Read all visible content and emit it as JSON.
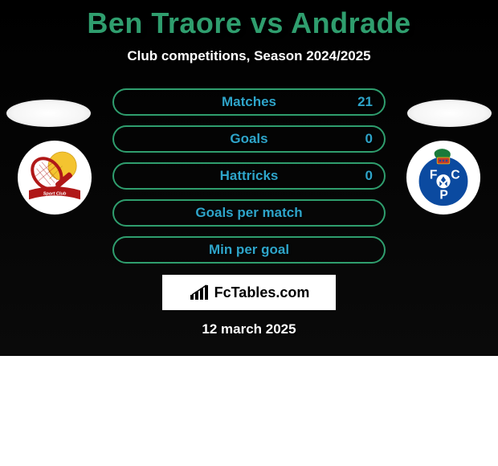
{
  "title_color": "#2f9e6e",
  "title_text": "Ben Traore vs Andrade",
  "subtitle": "Club competitions, Season 2024/2025",
  "accent_green": "#2f9e6e",
  "accent_blue": "#2ea4c9",
  "stats": [
    {
      "label": "Matches",
      "value_right": "21",
      "has_right": true
    },
    {
      "label": "Goals",
      "value_right": "0",
      "has_right": true
    },
    {
      "label": "Hattricks",
      "value_right": "0",
      "has_right": true
    },
    {
      "label": "Goals per match",
      "value_right": "",
      "has_right": false
    },
    {
      "label": "Min per goal",
      "value_right": "",
      "has_right": false
    }
  ],
  "fctables_label": "FcTables.com",
  "date": "12 march 2025",
  "left_club_colors": {
    "ball": "#f4c430",
    "racket": "#b01818",
    "ribbon": "#b01818"
  },
  "right_club_colors": {
    "shield": "#0b4aa0",
    "ball": "#ffffff",
    "dragon": "#1a7a3a",
    "banner": "#c0392b"
  }
}
